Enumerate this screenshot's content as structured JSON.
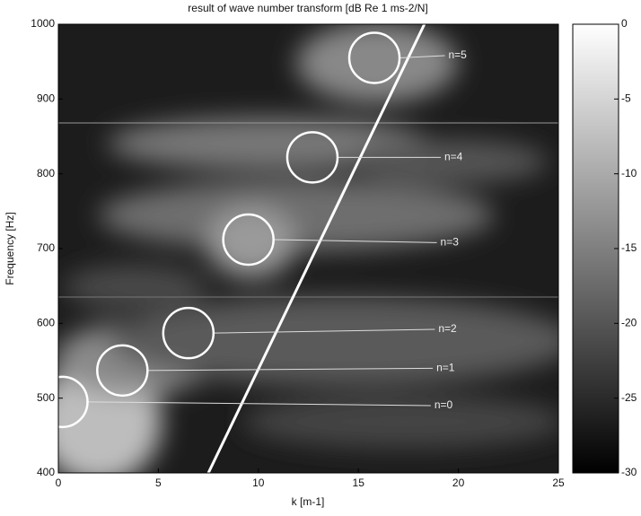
{
  "chart_data": {
    "type": "heatmap",
    "title": "result of wave number transform [dB Re 1 ms-2/N]",
    "xlabel": "k [m-1]",
    "ylabel": "Frequency [Hz]",
    "xlim": [
      0,
      25
    ],
    "ylim": [
      400,
      1000
    ],
    "xticks": [
      0,
      5,
      10,
      15,
      20,
      25
    ],
    "yticks": [
      400,
      500,
      600,
      700,
      800,
      900,
      1000
    ],
    "colorbar": {
      "lim": [
        -30,
        0
      ],
      "ticks": [
        0,
        -5,
        -10,
        -15,
        -20,
        -25,
        -30
      ]
    },
    "circles": {
      "x": [
        0.2,
        3.2,
        6.5,
        9.5,
        12.7,
        15.8
      ],
      "values": [
        495,
        537,
        587,
        712,
        822,
        955
      ]
    },
    "labels": {
      "texts": [
        "n=0",
        "n=1",
        "n=2",
        "n=3",
        "n=4",
        "n=5"
      ],
      "x": [
        18.8,
        18.9,
        19.0,
        19.1,
        19.3,
        19.5
      ],
      "values": [
        490,
        540,
        592,
        708,
        822,
        958
      ]
    },
    "line": {
      "x": [
        7.5,
        18.3
      ],
      "values": [
        400,
        1000
      ]
    }
  }
}
